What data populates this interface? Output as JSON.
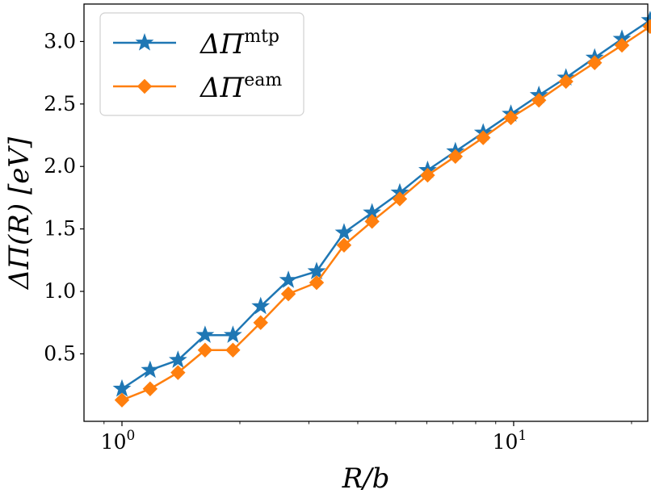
{
  "chart_data": {
    "type": "line",
    "xscale": "log",
    "xlabel": "R/b",
    "ylabel": "ΔΠ(R) [eV]",
    "xlim": [
      0.8,
      22
    ],
    "ylim": [
      -0.04,
      3.3
    ],
    "y_ticks": [
      0.5,
      1.0,
      1.5,
      2.0,
      2.5,
      3.0
    ],
    "y_tick_labels": [
      "0.5",
      "1.0",
      "1.5",
      "2.0",
      "2.5",
      "3.0"
    ],
    "x_major_ticks": [
      {
        "value": 1,
        "base": "10",
        "exp": "0"
      },
      {
        "value": 10,
        "base": "10",
        "exp": "1"
      }
    ],
    "x": [
      1.0,
      1.18,
      1.39,
      1.63,
      1.92,
      2.26,
      2.66,
      3.14,
      3.69,
      4.35,
      5.12,
      6.03,
      7.1,
      8.36,
      9.84,
      11.6,
      13.6,
      16.1,
      18.9,
      22.3
    ],
    "series": [
      {
        "name": "mtp",
        "legend_base": "ΔΠ",
        "legend_sup": "mtp",
        "color": "#1f77b4",
        "marker": "star",
        "values": [
          0.22,
          0.37,
          0.45,
          0.65,
          0.65,
          0.88,
          1.09,
          1.16,
          1.47,
          1.63,
          1.79,
          1.97,
          2.12,
          2.27,
          2.42,
          2.57,
          2.71,
          2.87,
          3.02,
          3.17
        ]
      },
      {
        "name": "eam",
        "legend_base": "ΔΠ",
        "legend_sup": "eam",
        "color": "#ff7f0e",
        "marker": "diamond",
        "values": [
          0.13,
          0.22,
          0.35,
          0.53,
          0.53,
          0.75,
          0.98,
          1.07,
          1.37,
          1.56,
          1.74,
          1.93,
          2.08,
          2.23,
          2.39,
          2.53,
          2.68,
          2.83,
          2.97,
          3.12
        ]
      }
    ],
    "legend_position": "top-left"
  }
}
